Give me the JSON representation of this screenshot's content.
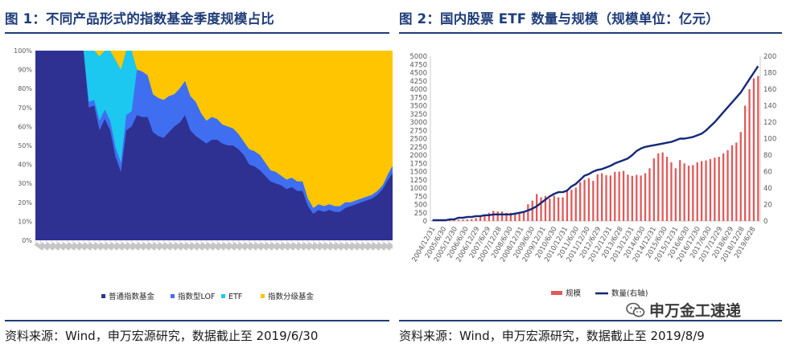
{
  "left_panel": {
    "title": "图 1：不同产品形式的指数基金季度规模占比",
    "source": "资料来源：Wind，申万宏源研究，数据截止至 2019/6/30"
  },
  "right_panel": {
    "title": "图 2：国内股票 ETF 数量与规模（规模单位：亿元）",
    "source": "资料来源：Wind，申万宏源研究，数据截止至 2019/8/9"
  },
  "watermark": {
    "text": "申万金工速递"
  },
  "colors": {
    "navy": "#2e3192",
    "blue": "#3f6ff0",
    "cyan": "#1cc7f0",
    "gold": "#ffc600",
    "bar": "#e05a5a",
    "line": "#14287a"
  },
  "chart_data": [
    {
      "type": "area",
      "stacked_percent": true,
      "title": "",
      "ylim": [
        0,
        100
      ],
      "yticks": [
        "0%",
        "10%",
        "20%",
        "30%",
        "40%",
        "50%",
        "60%",
        "70%",
        "80%",
        "90%",
        "100%"
      ],
      "xtick_count": 68,
      "legend": {
        "position": "bottom",
        "entries": [
          "普通指数基金",
          "指数型LOF",
          "ETF",
          "指数分级基金"
        ]
      },
      "series": [
        {
          "name": "普通指数基金",
          "values": [
            100,
            100,
            100,
            100,
            100,
            100,
            100,
            100,
            100,
            100,
            70,
            71,
            58,
            64,
            58,
            44,
            36,
            58,
            60,
            66,
            65,
            65,
            57,
            55,
            54,
            57,
            60,
            62,
            66,
            58,
            55,
            53,
            51,
            53,
            53,
            51,
            50,
            50,
            48,
            45,
            40,
            39,
            37,
            34,
            31,
            30,
            29,
            27,
            28,
            26,
            26,
            18,
            14,
            16,
            15,
            16,
            15,
            15,
            17,
            18,
            19,
            20,
            21,
            22,
            24,
            27,
            32,
            36
          ]
        },
        {
          "name": "指数型LOF",
          "values": [
            0,
            0,
            0,
            0,
            0,
            0,
            0,
            0,
            0,
            0,
            3,
            3,
            5,
            5,
            5,
            5,
            5,
            8,
            8,
            24,
            24,
            22,
            20,
            20,
            20,
            19,
            17,
            18,
            18,
            18,
            18,
            14,
            12,
            12,
            11,
            10,
            10,
            9,
            8,
            7,
            8,
            8,
            8,
            7,
            6,
            6,
            5,
            5,
            5,
            5,
            5,
            4,
            3,
            3,
            3,
            3,
            3,
            3,
            3,
            2,
            2,
            2,
            2,
            2,
            2,
            2,
            3,
            4
          ]
        },
        {
          "name": "ETF",
          "values": [
            0,
            0,
            0,
            0,
            0,
            0,
            0,
            0,
            0,
            0,
            27,
            26,
            34,
            31,
            37,
            46,
            49,
            34,
            32,
            0,
            0,
            0,
            0,
            0,
            0,
            0,
            0,
            0,
            0,
            0,
            0,
            0,
            0,
            0,
            0,
            0,
            0,
            0,
            0,
            0,
            0,
            0,
            0,
            0,
            0,
            0,
            0,
            0,
            0,
            0,
            0,
            0,
            0,
            0,
            0,
            0,
            0,
            0,
            0,
            0,
            0,
            0,
            0,
            0,
            0,
            0,
            0,
            0
          ]
        },
        {
          "name": "指数分级基金",
          "values": []
        }
      ]
    },
    {
      "type": "bar",
      "title": "",
      "yleft": {
        "min": 0,
        "max": 5000,
        "step": 250
      },
      "yright": {
        "min": 0,
        "max": 200,
        "step": 20
      },
      "xticks": [
        "2004/12/31",
        "2005/6/30",
        "2005/12/30",
        "2006/6/30",
        "2006/12/29",
        "2007/6/29",
        "2007/12/28",
        "2008/6/30",
        "2008/12/31",
        "2009/6/30",
        "2009/12/31",
        "2010/6/30",
        "2010/12/31",
        "2011/6/30",
        "2011/12/30",
        "2012/6/29",
        "2012/12/31",
        "2013/6/28",
        "2013/12/31",
        "2014/6/30",
        "2014/12/31",
        "2015/6/30",
        "2015/12/31",
        "2016/6/30",
        "2016/12/30",
        "2017/6/30",
        "2017/12/29",
        "2018/6/29",
        "2018/12/28",
        "2019/6/28"
      ],
      "legend": {
        "position": "bottom",
        "entries": [
          "规模",
          "数量(右轴)"
        ]
      },
      "series": [
        {
          "name": "规模",
          "type": "bar",
          "axis": "left"
        },
        {
          "name": "数量(右轴)",
          "type": "line",
          "axis": "right"
        }
      ]
    }
  ]
}
